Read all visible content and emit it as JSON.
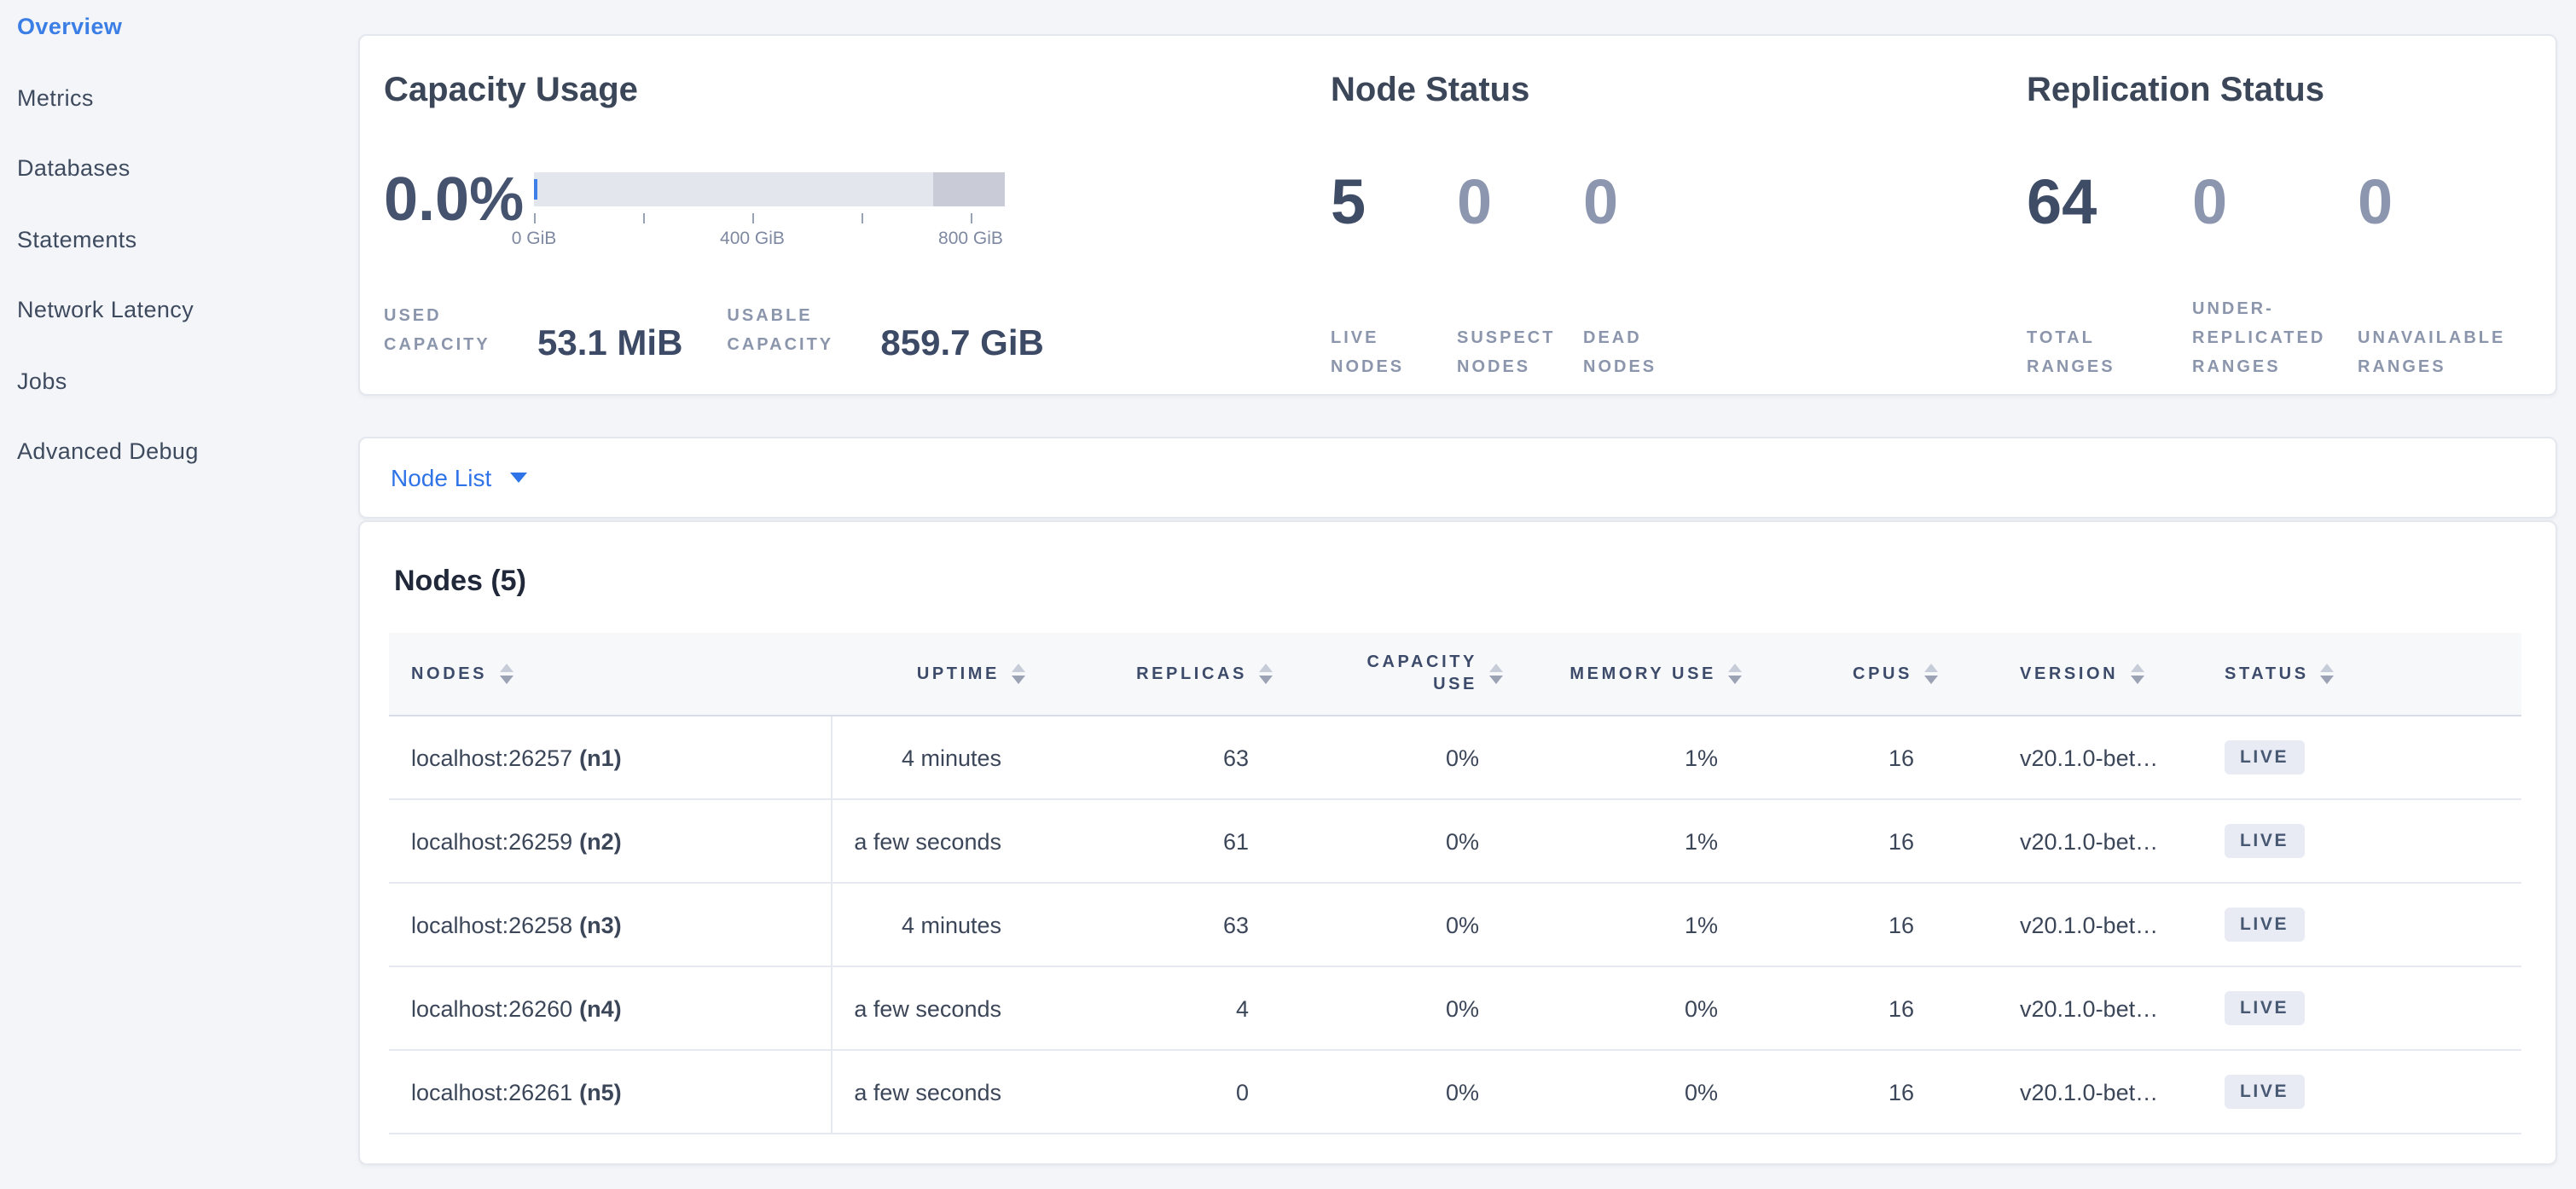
{
  "colors": {
    "accent_blue": "#3a7ee6",
    "page_bg": "#f4f5f9",
    "bar_track": "#e4e6ed",
    "bar_overflow_segment": "#c9ccd7",
    "bar_used": "#3f7fe8",
    "live_badge_bg": "#e8ebf4",
    "dim_number": "#8c96ae",
    "primary_number": "#3f4c66"
  },
  "sidebar": {
    "items": [
      {
        "label": "Overview",
        "active": true
      },
      {
        "label": "Metrics"
      },
      {
        "label": "Databases"
      },
      {
        "label": "Statements"
      },
      {
        "label": "Network Latency"
      },
      {
        "label": "Jobs"
      },
      {
        "label": "Advanced Debug"
      }
    ]
  },
  "capacity": {
    "title": "Capacity Usage",
    "percent": "0.0%",
    "axis_labels": [
      "0 GiB",
      "400 GiB",
      "800 GiB"
    ],
    "used_label": "USED CAPACITY",
    "used_value": "53.1 MiB",
    "usable_label": "USABLE CAPACITY",
    "usable_value": "859.7 GiB"
  },
  "node_status": {
    "title": "Node Status",
    "stats": [
      {
        "value": "5",
        "label": "LIVE NODES"
      },
      {
        "value": "0",
        "label": "SUSPECT NODES"
      },
      {
        "value": "0",
        "label": "DEAD NODES"
      }
    ]
  },
  "replication": {
    "title": "Replication Status",
    "stats": [
      {
        "value": "64",
        "label": "TOTAL RANGES"
      },
      {
        "value": "0",
        "label": "UNDER-REPLICATED RANGES"
      },
      {
        "value": "0",
        "label": "UNAVAILABLE RANGES"
      }
    ]
  },
  "node_list": {
    "label": "Node List"
  },
  "nodes_table": {
    "heading": "Nodes (5)",
    "columns": [
      {
        "label": "NODES"
      },
      {
        "label": "UPTIME"
      },
      {
        "label": "REPLICAS"
      },
      {
        "label": "CAPACITY USE"
      },
      {
        "label": "MEMORY USE"
      },
      {
        "label": "CPUS"
      },
      {
        "label": "VERSION"
      },
      {
        "label": "STATUS"
      }
    ],
    "rows": [
      {
        "node": "localhost:26257",
        "node_id": "(n1)",
        "uptime": "4 minutes",
        "replicas": "63",
        "capacity_use": "0%",
        "memory_use": "1%",
        "cpus": "16",
        "version": "v20.1.0-bet…",
        "status": "LIVE"
      },
      {
        "node": "localhost:26259",
        "node_id": "(n2)",
        "uptime": "a few seconds",
        "replicas": "61",
        "capacity_use": "0%",
        "memory_use": "1%",
        "cpus": "16",
        "version": "v20.1.0-bet…",
        "status": "LIVE"
      },
      {
        "node": "localhost:26258",
        "node_id": "(n3)",
        "uptime": "4 minutes",
        "replicas": "63",
        "capacity_use": "0%",
        "memory_use": "1%",
        "cpus": "16",
        "version": "v20.1.0-bet…",
        "status": "LIVE"
      },
      {
        "node": "localhost:26260",
        "node_id": "(n4)",
        "uptime": "a few seconds",
        "replicas": "4",
        "capacity_use": "0%",
        "memory_use": "0%",
        "cpus": "16",
        "version": "v20.1.0-bet…",
        "status": "LIVE"
      },
      {
        "node": "localhost:26261",
        "node_id": "(n5)",
        "uptime": "a few seconds",
        "replicas": "0",
        "capacity_use": "0%",
        "memory_use": "0%",
        "cpus": "16",
        "version": "v20.1.0-bet…",
        "status": "LIVE"
      }
    ]
  },
  "chart_data": {
    "type": "bar",
    "title": "Capacity Usage",
    "percent_used": 0.0,
    "used": "53.1 MiB",
    "usable": "859.7 GiB",
    "xlabel": "GiB",
    "axis_ticks_gib": [
      0,
      200,
      400,
      600,
      800
    ],
    "axis_labeled_ticks_gib": [
      0,
      400,
      800
    ],
    "bar_end_gib": 860,
    "overflow_segment_start_gib": 730
  }
}
